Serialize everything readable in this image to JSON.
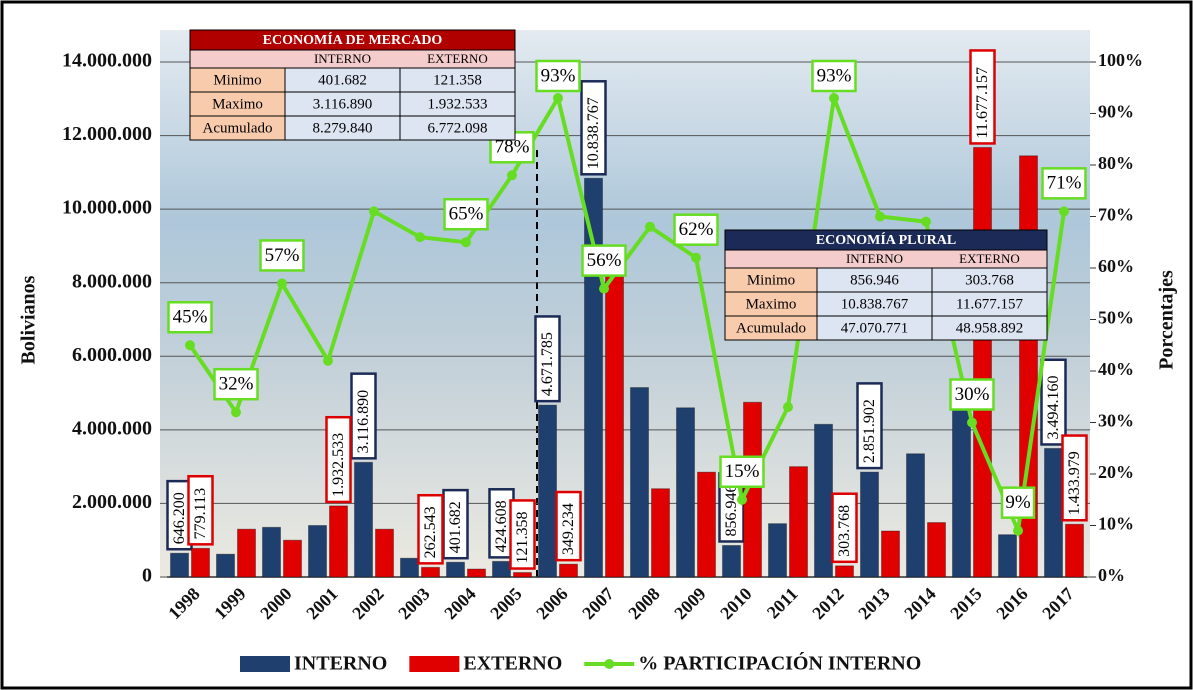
{
  "chart_data": {
    "type": "bar",
    "ylabel": "Bolivianos",
    "y2label": "Porcentajes",
    "categories": [
      "1998",
      "1999",
      "2000",
      "2001",
      "2002",
      "2003",
      "2004",
      "2005",
      "2006",
      "2007",
      "2008",
      "2009",
      "2010",
      "2011",
      "2012",
      "2013",
      "2014",
      "2015",
      "2016",
      "2017"
    ],
    "series": [
      {
        "name": "INTERNO",
        "color": "#1f3f6e",
        "values": [
          646200,
          620000,
          1350000,
          1400000,
          3116890,
          510000,
          401682,
          424608,
          4671785,
          10838767,
          5150000,
          4600000,
          856946,
          1450000,
          4150000,
          2851902,
          3350000,
          5000000,
          1150000,
          3494160
        ],
        "value_labels": [
          "646.200",
          null,
          null,
          null,
          "3.116.890",
          null,
          "401.682",
          "424.608",
          "4.671.785",
          "10.838.767",
          null,
          null,
          "856.946",
          null,
          null,
          "2.851.902",
          null,
          null,
          null,
          "3.494.160"
        ]
      },
      {
        "name": "EXTERNO",
        "color": "#e00000",
        "values": [
          779113,
          1300000,
          1000000,
          1932533,
          1300000,
          262543,
          216000,
          121358,
          349234,
          8600000,
          2400000,
          2850000,
          4750000,
          3000000,
          303768,
          1250000,
          1480000,
          11677157,
          11450000,
          1433979
        ],
        "value_labels": [
          "779.113",
          null,
          null,
          "1.932.533",
          null,
          "262.543",
          null,
          "121.358",
          "349.234",
          null,
          null,
          null,
          null,
          null,
          "303.768",
          null,
          null,
          "11.677.157",
          null,
          "1.433.979"
        ]
      },
      {
        "name": "% PARTICIPACIÓN INTERNO",
        "type": "line",
        "axis": "y2",
        "color": "#66dd22",
        "values": [
          45,
          32,
          57,
          42,
          71,
          66,
          65,
          78,
          93,
          56,
          68,
          62,
          15,
          33,
          93,
          70,
          69,
          30,
          9,
          71
        ],
        "value_labels": [
          "45%",
          "32%",
          "57%",
          null,
          null,
          null,
          "65%",
          "78%",
          "93%",
          "56%",
          null,
          "62%",
          "15%",
          null,
          "93%",
          null,
          null,
          "30%",
          "9%",
          "71%"
        ]
      }
    ],
    "ylim": [
      0,
      14000000
    ],
    "yticks": [
      0,
      {
        "value": 2000000,
        "label": "2.000.000"
      },
      {
        "value": 4000000,
        "label": "4.000.000"
      },
      {
        "value": 6000000,
        "label": "6.000.000"
      },
      {
        "value": 8000000,
        "label": "8.000.000"
      },
      {
        "value": 10000000,
        "label": "10.000.000"
      },
      {
        "value": 12000000,
        "label": "12.000.000"
      },
      {
        "value": 14000000,
        "label": "14.000.000"
      }
    ],
    "y2lim": [
      0,
      100
    ],
    "y2ticks": [
      {
        "value": 0,
        "label": "0%"
      },
      {
        "value": 10,
        "label": "10%"
      },
      {
        "value": 20,
        "label": "20%"
      },
      {
        "value": 30,
        "label": "30%"
      },
      {
        "value": 40,
        "label": "40%"
      },
      {
        "value": 50,
        "label": "50%"
      },
      {
        "value": 60,
        "label": "60%"
      },
      {
        "value": 70,
        "label": "70%"
      },
      {
        "value": 80,
        "label": "80%"
      },
      {
        "value": 90,
        "label": "90%"
      },
      {
        "value": 100,
        "label": "100%"
      }
    ],
    "grid": true,
    "legend": "bottom"
  },
  "tables": [
    {
      "title": "ECONOMÍA DE MERCADO",
      "title_color": "#b00000",
      "headers": [
        "INTERNO",
        "EXTERNO"
      ],
      "rows": [
        {
          "label": "Minimo",
          "values": [
            "401.682",
            "121.358"
          ]
        },
        {
          "label": "Maximo",
          "values": [
            "3.116.890",
            "1.932.533"
          ]
        },
        {
          "label": "Acumulado",
          "values": [
            "8.279.840",
            "6.772.098"
          ]
        }
      ]
    },
    {
      "title": "ECONOMÍA PLURAL",
      "title_color": "#1c2a57",
      "headers": [
        "INTERNO",
        "EXTERNO"
      ],
      "rows": [
        {
          "label": "Minimo",
          "values": [
            "856.946",
            "303.768"
          ]
        },
        {
          "label": "Maximo",
          "values": [
            "10.838.767",
            "11.677.157"
          ]
        },
        {
          "label": "Acumulado",
          "values": [
            "47.070.771",
            "48.958.892"
          ]
        }
      ]
    }
  ]
}
